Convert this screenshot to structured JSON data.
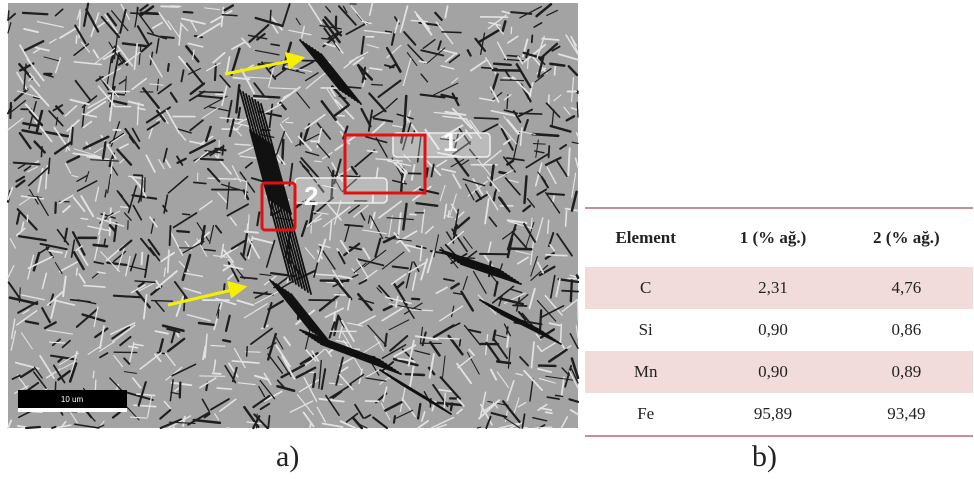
{
  "figure": {
    "micrograph": {
      "region_labels": [
        "1",
        "2"
      ],
      "scale_bar": "10 um",
      "panel_label": "a)"
    },
    "table": {
      "header": [
        "Element",
        "1 (% ağ.)",
        "2 (% ağ.)"
      ],
      "rows": [
        [
          "C",
          "2,31",
          "4,76"
        ],
        [
          "Si",
          "0,90",
          "0,86"
        ],
        [
          "Mn",
          "0,90",
          "0,89"
        ],
        [
          "Fe",
          "95,89",
          "93,49"
        ]
      ],
      "panel_label": "b)"
    }
  }
}
